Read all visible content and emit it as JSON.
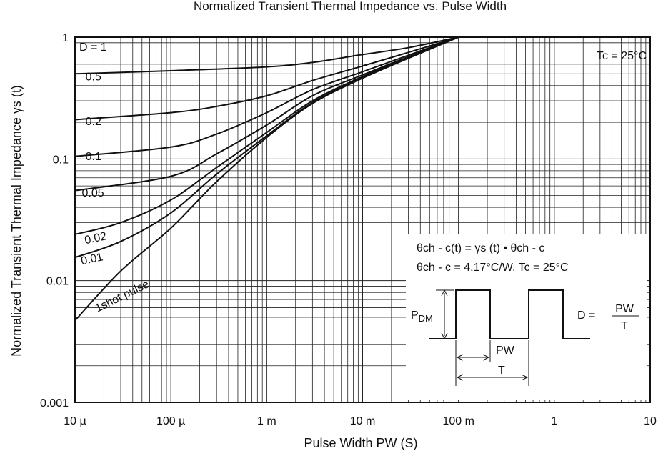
{
  "chart_data": {
    "type": "line",
    "title": "Normalized Transient Thermal Impedance vs. Pulse Width",
    "xlabel": "Pulse Width   PW  (S)",
    "ylabel": "Normalized Transient Thermal Impedance   γs  (t)",
    "x_scale": "log",
    "y_scale": "log",
    "xlim": [
      1e-05,
      10
    ],
    "ylim": [
      0.001,
      1
    ],
    "grid": true,
    "x_ticks": [
      {
        "value": 1e-05,
        "label": "10 µ"
      },
      {
        "value": 0.0001,
        "label": "100 µ"
      },
      {
        "value": 0.001,
        "label": "1 m"
      },
      {
        "value": 0.01,
        "label": "10 m"
      },
      {
        "value": 0.1,
        "label": "100 m"
      },
      {
        "value": 1,
        "label": "1"
      },
      {
        "value": 10,
        "label": "10"
      }
    ],
    "y_ticks": [
      {
        "value": 1,
        "label": "1"
      },
      {
        "value": 0.1,
        "label": "0.1"
      },
      {
        "value": 0.01,
        "label": "0.01"
      },
      {
        "value": 0.001,
        "label": "0.001"
      }
    ],
    "series": [
      {
        "name": "D = 1",
        "x": [
          1e-05,
          10
        ],
        "y": [
          1,
          1
        ]
      },
      {
        "name": "0.5",
        "x": [
          1e-05,
          0.0001,
          0.001,
          0.003,
          0.01,
          0.03,
          0.1
        ],
        "y": [
          0.5,
          0.53,
          0.57,
          0.62,
          0.72,
          0.82,
          1
        ]
      },
      {
        "name": "0.2",
        "x": [
          1e-05,
          0.0001,
          0.0003,
          0.001,
          0.003,
          0.01,
          0.03,
          0.1
        ],
        "y": [
          0.21,
          0.24,
          0.27,
          0.33,
          0.44,
          0.58,
          0.75,
          1
        ]
      },
      {
        "name": "0.1",
        "x": [
          1e-05,
          0.0001,
          0.0003,
          0.001,
          0.003,
          0.01,
          0.03,
          0.1
        ],
        "y": [
          0.105,
          0.125,
          0.16,
          0.24,
          0.37,
          0.52,
          0.71,
          1
        ]
      },
      {
        "name": "0.05",
        "x": [
          1e-05,
          0.0001,
          0.0003,
          0.001,
          0.003,
          0.01,
          0.03,
          0.1
        ],
        "y": [
          0.055,
          0.072,
          0.11,
          0.19,
          0.33,
          0.49,
          0.69,
          1
        ]
      },
      {
        "name": "0.02",
        "x": [
          1e-05,
          3e-05,
          0.0001,
          0.0003,
          0.001,
          0.003,
          0.01,
          0.03,
          0.1
        ],
        "y": [
          0.024,
          0.03,
          0.046,
          0.085,
          0.165,
          0.3,
          0.475,
          0.68,
          1
        ]
      },
      {
        "name": "0.01",
        "x": [
          1e-05,
          3e-05,
          0.0001,
          0.0003,
          0.001,
          0.003,
          0.01,
          0.03,
          0.1
        ],
        "y": [
          0.0155,
          0.021,
          0.036,
          0.075,
          0.155,
          0.29,
          0.465,
          0.675,
          1
        ]
      },
      {
        "name": "1shot pulse",
        "x": [
          1e-05,
          3e-05,
          0.0001,
          0.0003,
          0.001,
          0.003,
          0.01,
          0.03,
          0.1
        ],
        "y": [
          0.0047,
          0.012,
          0.027,
          0.065,
          0.15,
          0.285,
          0.46,
          0.67,
          1
        ]
      }
    ],
    "series_labels": [
      {
        "text": "D = 1",
        "x": 1e-05,
        "y": 1
      },
      {
        "text": "0.5",
        "x": 1.2e-05,
        "y": 0.44
      },
      {
        "text": "0.2",
        "x": 1.2e-05,
        "y": 0.19
      },
      {
        "text": "0.1",
        "x": 1.2e-05,
        "y": 0.098
      },
      {
        "text": "0.05",
        "x": 1.1e-05,
        "y": 0.049
      },
      {
        "text": "0.02",
        "x": 1.2e-05,
        "y": 0.02
      },
      {
        "text": "0.01",
        "x": 1.1e-05,
        "y": 0.0135
      },
      {
        "text": "1shot pulse",
        "x": 1.6e-05,
        "y": 0.0055
      }
    ],
    "annotations": {
      "tc": "Tc = 25°C",
      "formula1": "θch - c(t) = γs (t)  • θch - c",
      "formula2": "θch - c = 4.17°C/W, Tc = 25°C",
      "pdm_main": "P",
      "pdm_sub": "DM",
      "pw_label": "PW",
      "t_label": "T",
      "d_prefix": "D =",
      "d_num": "PW",
      "d_den": "T"
    }
  }
}
